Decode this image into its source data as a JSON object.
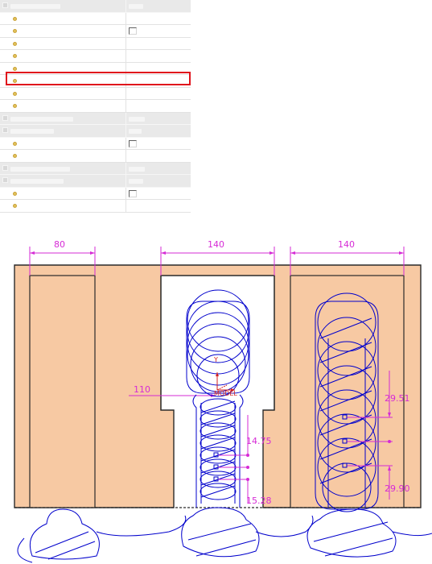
{
  "properties": {
    "rows": [
      {
        "kind": "section"
      },
      {
        "kind": "item",
        "value": ""
      },
      {
        "kind": "item",
        "value": "checkbox"
      },
      {
        "kind": "item",
        "value": ""
      },
      {
        "kind": "item",
        "value": ""
      },
      {
        "kind": "item",
        "value": ""
      },
      {
        "kind": "item",
        "value": "",
        "highlighted": true
      },
      {
        "kind": "item",
        "value": ""
      },
      {
        "kind": "item",
        "value": ""
      },
      {
        "kind": "section"
      },
      {
        "kind": "section"
      },
      {
        "kind": "item",
        "value": "checkbox"
      },
      {
        "kind": "item",
        "value": ""
      },
      {
        "kind": "section"
      },
      {
        "kind": "section"
      },
      {
        "kind": "item",
        "value": "checkbox"
      },
      {
        "kind": "item",
        "value": ""
      }
    ]
  },
  "drawing": {
    "colors": {
      "stock": "#f7c9a3",
      "toolpath": "#0000cc",
      "dimension": "#d62bd6",
      "csys": "#d42020",
      "outline": "#2a2a2a"
    },
    "dimensions": {
      "slot1_width": "80",
      "slot2_width": "140",
      "slot3_width": "140",
      "horizontal_110": "110",
      "pitch_1475": "14.75",
      "pitch_1528": "15.28",
      "pitch_2951": "29.51",
      "pitch_2990": "29.90"
    },
    "csys_label": "MODEL"
  }
}
